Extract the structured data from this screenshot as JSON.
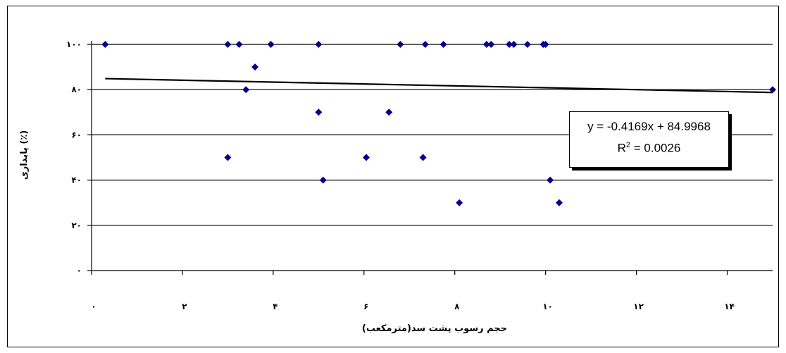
{
  "chart_data": {
    "type": "scatter",
    "xlabel": "حجم رسوب پشت سد(مترمکعب)",
    "ylabel": "پایداری (٪)",
    "xlim": [
      0,
      15
    ],
    "ylim": [
      0,
      100
    ],
    "x_ticks": [
      0,
      2,
      4,
      6,
      8,
      10,
      12,
      14
    ],
    "x_tick_labels": [
      "۰",
      "۲",
      "۴",
      "۶",
      "۸",
      "۱۰",
      "۱۲",
      "۱۴"
    ],
    "y_ticks": [
      0,
      20,
      40,
      60,
      80,
      100
    ],
    "y_tick_labels": [
      "۰",
      "۲۰",
      "۴۰",
      "۶۰",
      "۸۰",
      "۱۰۰"
    ],
    "grid": "horizontal",
    "marker_color": "#00008B",
    "points": [
      {
        "x": 0.3,
        "y": 100
      },
      {
        "x": 3.0,
        "y": 100
      },
      {
        "x": 3.25,
        "y": 100
      },
      {
        "x": 3.95,
        "y": 100
      },
      {
        "x": 5.0,
        "y": 100
      },
      {
        "x": 6.8,
        "y": 100
      },
      {
        "x": 7.35,
        "y": 100
      },
      {
        "x": 7.75,
        "y": 100
      },
      {
        "x": 8.7,
        "y": 100
      },
      {
        "x": 8.8,
        "y": 100
      },
      {
        "x": 9.2,
        "y": 100
      },
      {
        "x": 9.3,
        "y": 100
      },
      {
        "x": 9.6,
        "y": 100
      },
      {
        "x": 9.95,
        "y": 100
      },
      {
        "x": 10.0,
        "y": 100
      },
      {
        "x": 3.6,
        "y": 90
      },
      {
        "x": 3.4,
        "y": 80
      },
      {
        "x": 15.0,
        "y": 80
      },
      {
        "x": 5.0,
        "y": 70
      },
      {
        "x": 6.55,
        "y": 70
      },
      {
        "x": 3.0,
        "y": 50
      },
      {
        "x": 6.05,
        "y": 50
      },
      {
        "x": 7.3,
        "y": 50
      },
      {
        "x": 5.1,
        "y": 40
      },
      {
        "x": 10.1,
        "y": 40
      },
      {
        "x": 8.1,
        "y": 30
      },
      {
        "x": 10.3,
        "y": 30
      }
    ],
    "trendline": {
      "type": "linear",
      "slope": -0.4169,
      "intercept": 84.9968,
      "x_range": [
        0.3,
        15
      ],
      "equation": "y = -0.4169x + 84.9968",
      "r2_label": "R",
      "r2_sup": "2",
      "r2_value": " = 0.0026"
    }
  }
}
